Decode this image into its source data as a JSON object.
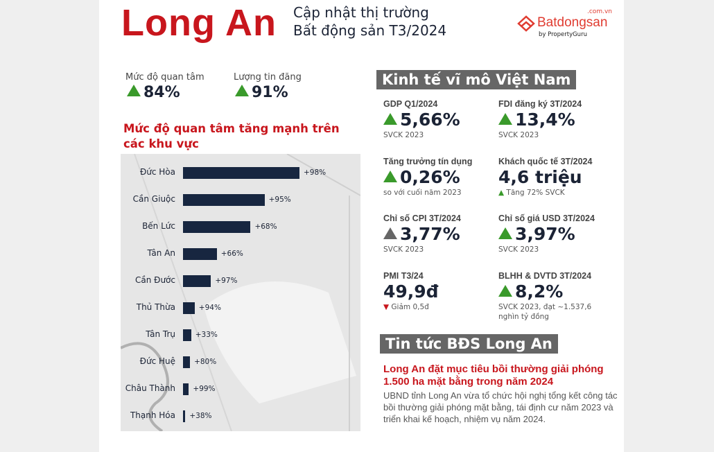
{
  "header": {
    "title": "Long An",
    "subtitle_line1": "Cập nhật thị trường",
    "subtitle_line2": "Bất động sản T3/2024"
  },
  "logo": {
    "brand": "Batdongsan",
    "domain": ".com.vn",
    "by": "by PropertyGuru"
  },
  "stats": [
    {
      "label": "Mức độ quan tâm",
      "value": "84%",
      "trend": "up"
    },
    {
      "label": "Lượng tin đăng",
      "value": "91%",
      "trend": "up"
    }
  ],
  "chart_section_title": "Mức độ quan tâm tăng mạnh trên các khu vực",
  "chart_data": {
    "type": "bar",
    "orientation": "horizontal",
    "title": "Mức độ quan tâm tăng mạnh trên các khu vực",
    "categories": [
      "Đức Hòa",
      "Cần Giuộc",
      "Bến Lức",
      "Tân An",
      "Cần Đước",
      "Thủ Thừa",
      "Tân Trụ",
      "Đức Huệ",
      "Châu Thành",
      "Thạnh Hóa"
    ],
    "data_labels": [
      "+98%",
      "+95%",
      "+68%",
      "+66%",
      "+97%",
      "+94%",
      "+33%",
      "+80%",
      "+99%",
      "+38%"
    ],
    "bar_relative_length": [
      100,
      70,
      58,
      29,
      24,
      10,
      7,
      6,
      5,
      2
    ],
    "bar_color": "#172640",
    "background": "map",
    "grid": false
  },
  "macro": {
    "title": "Kinh tế vĩ mô Việt Nam",
    "items": [
      {
        "label": "GDP Q1/2024",
        "value": "5,66%",
        "trend": "up",
        "note": "SVCK 2023"
      },
      {
        "label": "FDI đăng ký 3T/2024",
        "value": "13,4%",
        "trend": "up",
        "note": "SVCK 2023"
      },
      {
        "label": "Tăng trưởng tín dụng",
        "value": "0,26%",
        "trend": "up",
        "note": "so với cuối năm 2023"
      },
      {
        "label": "Khách quốc tế 3T/2024",
        "value": "4,6 triệu",
        "trend": "none",
        "note": "▲ Tăng 72% SVCK"
      },
      {
        "label": "Chỉ số CPI 3T/2024",
        "value": "3,77%",
        "trend": "neutral",
        "note": "SVCK 2023"
      },
      {
        "label": "Chỉ số giá USD 3T/2024",
        "value": "3,97%",
        "trend": "up",
        "note": "SVCK 2023"
      },
      {
        "label": "PMI T3/24",
        "value": "49,9đ",
        "trend": "none",
        "note": "▼ Giảm 0,5đ"
      },
      {
        "label": "BLHH & DVTD 3T/2024",
        "value": "8,2%",
        "trend": "up",
        "note": "SVCK 2023, đạt ~1.537,6 nghìn tỷ đồng"
      }
    ]
  },
  "news": {
    "title": "Tin tức BĐS Long An",
    "headline": "Long An đặt mục tiêu bồi thường giải phóng 1.500 ha mặt bằng trong năm 2024",
    "body": "UBND tỉnh Long An vừa tổ chức hội nghị tổng kết công tác bồi thường giải phóng mặt bằng, tái định cư năm 2023 và triển khai kế hoạch, nhiệm vụ năm 2024."
  },
  "colors": {
    "brand_red": "#c8161d",
    "navy": "#1b2335",
    "up_green": "#3a9a2b",
    "section_gray": "#666666"
  }
}
